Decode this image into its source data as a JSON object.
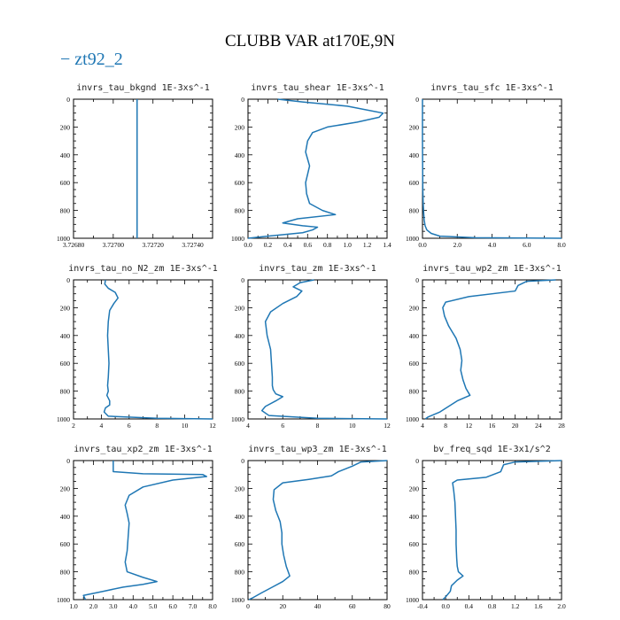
{
  "figure": {
    "title": "CLUBB VAR at170E,9N",
    "legend": "− zt92_2",
    "series_color": "#1f77b4"
  },
  "chart_data": [
    {
      "type": "line",
      "title": "invrs_tau_bkgnd   1E-3xs^-1",
      "xlim": [
        3.7268,
        3.7275
      ],
      "ylim": [
        0,
        1000
      ],
      "y_inverted": true,
      "xticks": [
        "3.72680",
        "3.72700",
        "3.72720",
        "3.72740"
      ],
      "xtick_values": [
        3.7268,
        3.727,
        3.7272,
        3.7274
      ],
      "yticks": [
        0,
        200,
        400,
        600,
        800,
        1000
      ],
      "series": [
        {
          "x": [
            3.72712,
            3.72712
          ],
          "y": [
            0,
            1000
          ]
        }
      ]
    },
    {
      "type": "line",
      "title": "invrs_tau_shear   1E-3xs^-1",
      "xlim": [
        0,
        1.4
      ],
      "ylim": [
        0,
        1000
      ],
      "y_inverted": true,
      "xticks": [
        "0.0",
        "0.2",
        "0.4",
        "0.6",
        "0.8",
        "1.0",
        "1.2",
        "1.4"
      ],
      "xtick_values": [
        0,
        0.2,
        0.4,
        0.6,
        0.8,
        1.0,
        1.2,
        1.4
      ],
      "yticks": [
        0,
        200,
        400,
        600,
        800,
        1000
      ],
      "series": [
        {
          "x": [
            0.3,
            0.55,
            1.0,
            1.36,
            1.32,
            1.1,
            0.8,
            0.65,
            0.6,
            0.58,
            0.6,
            0.62,
            0.6,
            0.58,
            0.59,
            0.62,
            0.75,
            0.88,
            0.5,
            0.35,
            0.55,
            0.7,
            0.65,
            0.55,
            0.2,
            0.0
          ],
          "y": [
            0,
            20,
            50,
            100,
            130,
            165,
            200,
            240,
            300,
            380,
            430,
            480,
            540,
            600,
            680,
            750,
            800,
            830,
            860,
            890,
            910,
            920,
            940,
            960,
            985,
            1000
          ]
        }
      ]
    },
    {
      "type": "line",
      "title": "invrs_tau_sfc   1E-3xs^-1",
      "xlim": [
        0,
        8
      ],
      "ylim": [
        0,
        1000
      ],
      "y_inverted": true,
      "xticks": [
        "0.0",
        "2.0",
        "4.0",
        "6.0",
        "8.0"
      ],
      "xtick_values": [
        0,
        2,
        4,
        6,
        8
      ],
      "yticks": [
        0,
        200,
        400,
        600,
        800,
        1000
      ],
      "series": [
        {
          "x": [
            0.0,
            0.0,
            0.01,
            0.02,
            0.04,
            0.07,
            0.1,
            0.15,
            0.25,
            0.5,
            1.0,
            3.0,
            8.0
          ],
          "y": [
            0,
            300,
            500,
            650,
            750,
            820,
            870,
            910,
            940,
            965,
            985,
            996,
            1000
          ]
        }
      ]
    },
    {
      "type": "line",
      "title": "invrs_tau_no_N2_zm   1E-3xs^-1",
      "xlim": [
        2,
        12
      ],
      "ylim": [
        0,
        1000
      ],
      "y_inverted": true,
      "xticks": [
        "2",
        "4",
        "6",
        "8",
        "10",
        "12"
      ],
      "xtick_values": [
        2,
        4,
        6,
        8,
        10,
        12
      ],
      "yticks": [
        0,
        200,
        400,
        600,
        800,
        1000
      ],
      "series": [
        {
          "x": [
            4.3,
            4.25,
            4.5,
            5.0,
            5.2,
            4.9,
            4.6,
            4.5,
            4.45,
            4.5,
            4.55,
            4.5,
            4.45,
            4.5,
            4.4,
            4.6,
            4.6,
            4.3,
            4.2,
            4.5,
            8.0,
            12.0
          ],
          "y": [
            0,
            30,
            60,
            90,
            130,
            170,
            220,
            300,
            400,
            500,
            600,
            700,
            760,
            800,
            830,
            870,
            900,
            920,
            950,
            980,
            995,
            1000
          ]
        }
      ]
    },
    {
      "type": "line",
      "title": "invrs_tau_zm   1E-3xs^-1",
      "xlim": [
        4,
        12
      ],
      "ylim": [
        0,
        1000
      ],
      "y_inverted": true,
      "xticks": [
        "4",
        "6",
        "8",
        "10",
        "12"
      ],
      "xtick_values": [
        4,
        6,
        8,
        10,
        12
      ],
      "yticks": [
        0,
        200,
        400,
        600,
        800,
        1000
      ],
      "series": [
        {
          "x": [
            7.8,
            7.0,
            6.6,
            7.1,
            6.8,
            6.0,
            5.3,
            5.0,
            5.1,
            5.3,
            5.35,
            5.4,
            5.4,
            5.45,
            5.6,
            6.0,
            5.6,
            5.0,
            4.8,
            5.2,
            8.0,
            12.0
          ],
          "y": [
            0,
            20,
            50,
            80,
            120,
            170,
            230,
            300,
            400,
            500,
            600,
            700,
            760,
            790,
            820,
            840,
            870,
            910,
            940,
            975,
            995,
            1000
          ]
        }
      ]
    },
    {
      "type": "line",
      "title": "invrs_tau_wp2_zm   1E-3xs^-1",
      "xlim": [
        4,
        28
      ],
      "ylim": [
        0,
        1000
      ],
      "y_inverted": true,
      "xticks": [
        "4",
        "8",
        "12",
        "16",
        "20",
        "24",
        "28"
      ],
      "xtick_values": [
        4,
        8,
        12,
        16,
        20,
        24,
        28
      ],
      "yticks": [
        0,
        200,
        400,
        600,
        800,
        1000
      ],
      "series": [
        {
          "x": [
            27.0,
            22.0,
            20.5,
            20.0,
            12.0,
            8.0,
            7.5,
            7.8,
            8.5,
            9.8,
            10.5,
            10.8,
            10.6,
            11.0,
            11.5,
            12.2,
            10.0,
            8.5,
            7.0,
            5.0,
            4.5
          ],
          "y": [
            0,
            10,
            40,
            80,
            120,
            160,
            200,
            260,
            330,
            420,
            500,
            580,
            650,
            720,
            780,
            830,
            870,
            910,
            950,
            985,
            1000
          ]
        }
      ]
    },
    {
      "type": "line",
      "title": "invrs_tau_xp2_zm   1E-3xs^-1",
      "xlim": [
        1.0,
        8.0
      ],
      "ylim": [
        0,
        1000
      ],
      "y_inverted": true,
      "xticks": [
        "1.0",
        "2.0",
        "3.0",
        "4.0",
        "5.0",
        "6.0",
        "7.0",
        "8.0"
      ],
      "xtick_values": [
        1,
        2,
        3,
        4,
        5,
        6,
        7,
        8
      ],
      "yticks": [
        0,
        200,
        400,
        600,
        800,
        1000
      ],
      "series": [
        {
          "x": [
            3.0,
            3.0,
            4.5,
            7.5,
            7.7,
            6.0,
            4.5,
            3.8,
            3.6,
            3.7,
            3.8,
            3.75,
            3.7,
            3.6,
            3.7,
            4.5,
            5.2,
            4.5,
            3.5,
            2.5,
            1.5,
            1.6
          ],
          "y": [
            0,
            80,
            95,
            100,
            115,
            140,
            190,
            250,
            320,
            380,
            450,
            550,
            650,
            730,
            800,
            840,
            870,
            890,
            910,
            940,
            970,
            1000
          ]
        }
      ]
    },
    {
      "type": "line",
      "title": "invrs_tau_wp3_zm   1E-3xs^-1",
      "xlim": [
        0,
        80
      ],
      "ylim": [
        0,
        1000
      ],
      "y_inverted": true,
      "xticks": [
        "0",
        "20",
        "40",
        "60",
        "80"
      ],
      "xtick_values": [
        0,
        20,
        40,
        60,
        80
      ],
      "yticks": [
        0,
        200,
        400,
        600,
        800,
        1000
      ],
      "series": [
        {
          "x": [
            80.0,
            65.0,
            60.0,
            52.0,
            48.0,
            35.0,
            20.0,
            15.0,
            14.5,
            16.0,
            18.5,
            19.5,
            19.5,
            20.5,
            22.0,
            24.0,
            20.0,
            14.0,
            8.0,
            3.0,
            0.5
          ],
          "y": [
            0,
            10,
            40,
            80,
            110,
            135,
            160,
            210,
            280,
            360,
            440,
            520,
            600,
            680,
            760,
            830,
            870,
            910,
            950,
            985,
            1000
          ]
        }
      ]
    },
    {
      "type": "line",
      "title": "bv_freq_sqd   1E-3x1/s^2",
      "xlim": [
        -0.4,
        2.0
      ],
      "ylim": [
        0,
        1000
      ],
      "y_inverted": true,
      "xticks": [
        "-0.4",
        "0.0",
        "0.4",
        "0.8",
        "1.2",
        "1.6",
        "2.0"
      ],
      "xtick_values": [
        -0.4,
        0.0,
        0.4,
        0.8,
        1.2,
        1.6,
        2.0
      ],
      "yticks": [
        0,
        200,
        400,
        600,
        800,
        1000
      ],
      "series": [
        {
          "x": [
            2.0,
            1.2,
            1.0,
            0.95,
            0.7,
            0.2,
            0.12,
            0.14,
            0.16,
            0.17,
            0.18,
            0.18,
            0.19,
            0.2,
            0.22,
            0.3,
            0.2,
            0.1,
            0.08,
            0.0,
            -0.05
          ],
          "y": [
            0,
            10,
            30,
            80,
            120,
            140,
            160,
            220,
            300,
            400,
            500,
            600,
            700,
            760,
            800,
            830,
            860,
            900,
            940,
            980,
            1000
          ]
        }
      ]
    }
  ]
}
